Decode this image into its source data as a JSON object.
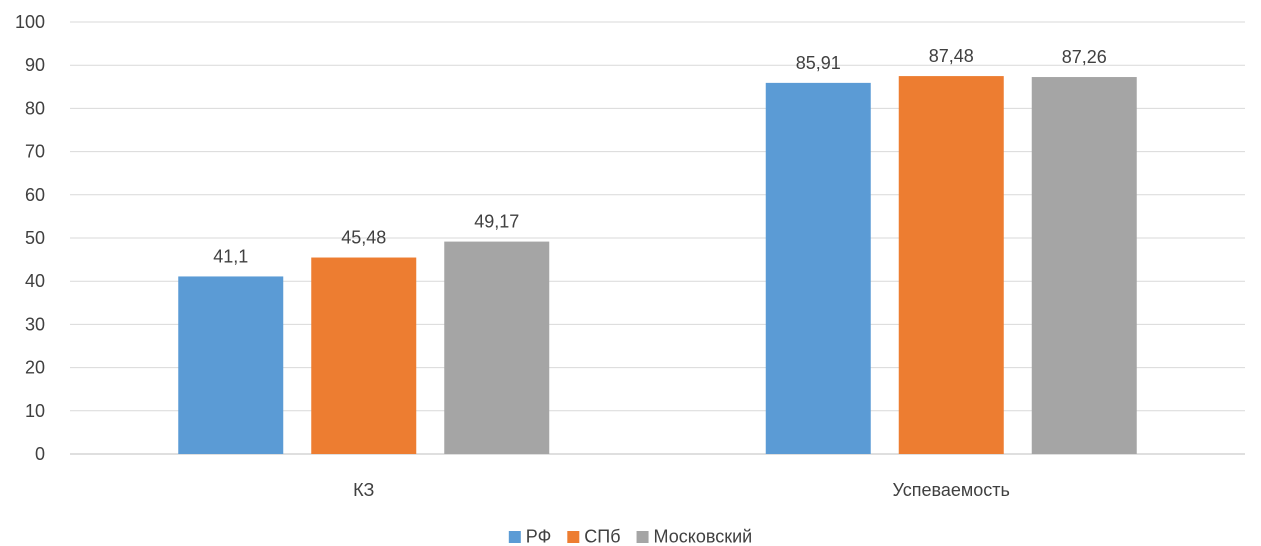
{
  "chart_data": {
    "type": "bar",
    "categories": [
      "КЗ",
      "Успеваемость"
    ],
    "series": [
      {
        "name": "РФ",
        "values": [
          41.1,
          85.91
        ],
        "labels": [
          "41,1",
          "85,91"
        ],
        "color": "#5B9BD5"
      },
      {
        "name": "СПб",
        "values": [
          45.48,
          87.48
        ],
        "labels": [
          "45,48",
          "87,48"
        ],
        "color": "#ED7D31"
      },
      {
        "name": "Московский",
        "values": [
          49.17,
          87.26
        ],
        "labels": [
          "49,17",
          "87,26"
        ],
        "color": "#A5A5A5"
      }
    ],
    "ylim": [
      0,
      100
    ],
    "yticks": [
      "0",
      "10",
      "20",
      "30",
      "40",
      "50",
      "60",
      "70",
      "80",
      "90",
      "100"
    ],
    "grid": true,
    "legend_position": "bottom"
  }
}
